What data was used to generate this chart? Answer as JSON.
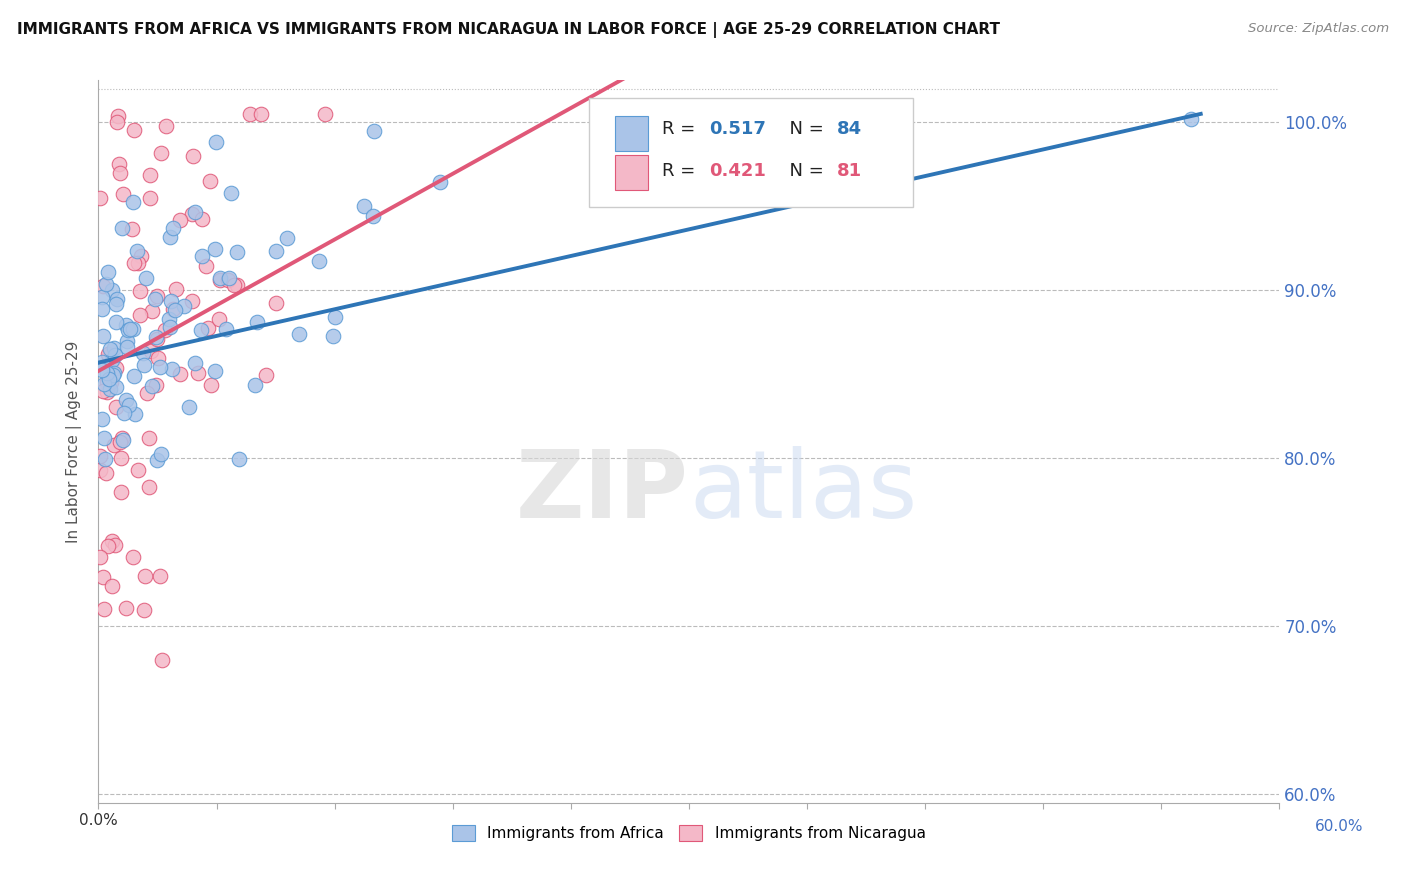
{
  "title": "IMMIGRANTS FROM AFRICA VS IMMIGRANTS FROM NICARAGUA IN LABOR FORCE | AGE 25-29 CORRELATION CHART",
  "source": "Source: ZipAtlas.com",
  "ylabel": "In Labor Force | Age 25-29",
  "series": [
    {
      "name": "Immigrants from Africa",
      "color": "#aac4e8",
      "edge_color": "#5b9bd5",
      "trend_color": "#2e75b6",
      "R": 0.517,
      "N": 84
    },
    {
      "name": "Immigrants from Nicaragua",
      "color": "#f4b8c8",
      "edge_color": "#e05878",
      "trend_color": "#e05878",
      "R": 0.421,
      "N": 81
    }
  ],
  "xlim": [
    0.0,
    0.6
  ],
  "ylim": [
    0.595,
    1.025
  ],
  "yticks": [
    0.6,
    0.7,
    0.8,
    0.9,
    1.0
  ],
  "ytick_labels": [
    "60.0%",
    "70.0%",
    "80.0%",
    "90.0%",
    "100.0%"
  ],
  "xtick_label_left": "0.0%",
  "xtick_label_right": "60.0%",
  "watermark_zip": "ZIP",
  "watermark_atlas": "atlas",
  "background_color": "#ffffff",
  "grid_color": "#bbbbbb",
  "legend_blue_color": "#2e75b6",
  "legend_pink_color": "#e05878"
}
